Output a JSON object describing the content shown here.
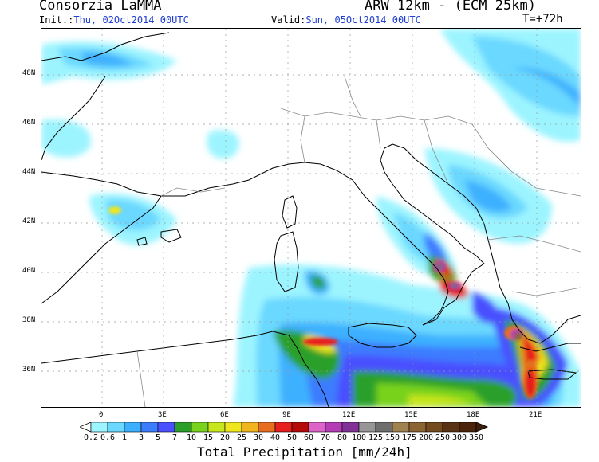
{
  "header": {
    "org": "Consorzia LaMMA",
    "model": "ARW 12km - (ECM 25km)",
    "init_label": "Init.:",
    "init_value": "Thu, 02Oct2014 00UTC",
    "valid_label": "Valid:",
    "valid_value": "Sun, 05Oct2014 00UTC",
    "timestep": "T=+72h"
  },
  "axes": {
    "lat_labels": [
      "48N",
      "46N",
      "44N",
      "42N",
      "40N",
      "38N",
      "36N"
    ],
    "lon_labels": [
      "0",
      "3E",
      "6E",
      "9E",
      "12E",
      "15E",
      "18E",
      "21E"
    ]
  },
  "colorbar": {
    "title": "Total Precipitation [mm/24h]",
    "levels": [
      "0.2",
      "0.6",
      "1",
      "3",
      "5",
      "7",
      "10",
      "15",
      "20",
      "25",
      "30",
      "40",
      "50",
      "60",
      "70",
      "80",
      "100",
      "125",
      "150",
      "175",
      "200",
      "250",
      "300",
      "350"
    ],
    "colors": [
      "#ffffff",
      "#9cf4ff",
      "#6ad8ff",
      "#3cb0ff",
      "#3c7cff",
      "#4a50ff",
      "#2aa02a",
      "#78d21e",
      "#c8e61e",
      "#f0e61e",
      "#f0b41e",
      "#e66e1e",
      "#e61e1e",
      "#b40a0a",
      "#dc64c8",
      "#b43cb4",
      "#823296",
      "#969696",
      "#6e6e6e",
      "#a08250",
      "#8c6432",
      "#734b1e",
      "#5a3214",
      "#4b230a"
    ]
  }
}
